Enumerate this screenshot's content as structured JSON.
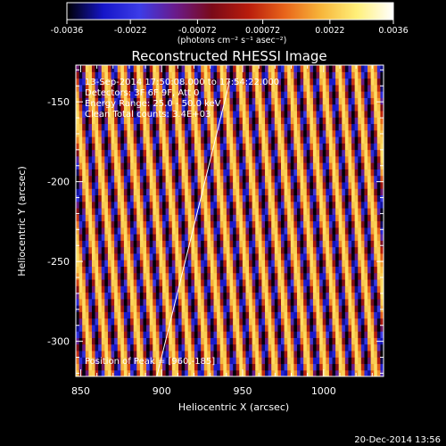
{
  "chart_data": {
    "type": "heatmap",
    "title": "Reconstructed RHESSI Image",
    "xlabel": "Heliocentric X (arcsec)",
    "ylabel": "Heliocentric Y (arcsec)",
    "xlim": [
      847,
      1037
    ],
    "ylim": [
      -322,
      -127
    ],
    "x_ticks": [
      850,
      900,
      950,
      1000
    ],
    "y_ticks": [
      -150,
      -200,
      -250,
      -300
    ],
    "colorbar": {
      "ticks": [
        "-0.0036",
        "-0.0022",
        "-0.00072",
        "0.00072",
        "0.0022",
        "0.0036"
      ],
      "tick_values": [
        -0.0036,
        -0.0022,
        -0.00072,
        0.00072,
        0.0022,
        0.0036
      ],
      "unit_label": "(photons cm⁻² s⁻¹ asec⁻²)",
      "colormap": [
        "#000000",
        "#1515c8",
        "#3c3ce8",
        "#6a1a8a",
        "#7a0a18",
        "#b81c0c",
        "#e8641a",
        "#f7b53a",
        "#fff07a",
        "#ffffff"
      ]
    },
    "stripe_pattern": {
      "direction": "near-vertical",
      "period_arcsec": 10.3,
      "amplitude": 0.0036
    },
    "limb_line": {
      "points": [
        [
          897,
          -322
        ],
        [
          942,
          -137
        ]
      ]
    },
    "annotations": [
      "13-Sep-2014 17:50:08.000 to 17:54:22.000",
      "Detectors: 3F 6F 9F, Att 0",
      "Energy Range: 25.0 - 50.0 keV",
      "Clean    Total counts: 3.4E+03"
    ],
    "peak_annotation": "Position of Peak = [960,-185]",
    "footer_date": "20-Dec-2014 13:56"
  }
}
